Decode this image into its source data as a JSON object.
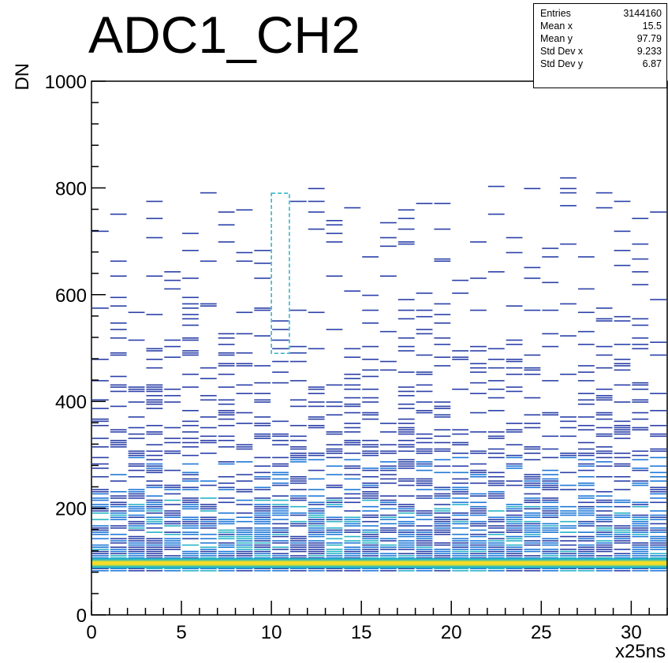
{
  "chart_data": {
    "type": "heatmap",
    "title": "ADC1_CH2",
    "xlabel": "x25ns",
    "ylabel": "DN",
    "xlim": [
      0,
      32
    ],
    "ylim": [
      0,
      1000
    ],
    "x_ticks": [
      0,
      5,
      10,
      15,
      20,
      25,
      30
    ],
    "y_ticks": [
      0,
      200,
      400,
      600,
      800,
      1000
    ],
    "baseline_band": {
      "y_center": 97,
      "y_width": 12,
      "color": "#f5dc28"
    },
    "colors": {
      "low": "#2a3fa8",
      "mid": "#1e78d8",
      "high": "#27b3c6",
      "peak": "#f5dc28"
    },
    "highlight_box": {
      "x": [
        10,
        11
      ],
      "y": [
        490,
        790
      ]
    },
    "stats": [
      {
        "label": "Entries",
        "value": "3144160"
      },
      {
        "label": "Mean x",
        "value": "15.5"
      },
      {
        "label": "Mean y",
        "value": "97.79"
      },
      {
        "label": "Std Dev x",
        "value": "9.233"
      },
      {
        "label": "Std Dev y",
        "value": "6.87"
      }
    ]
  }
}
